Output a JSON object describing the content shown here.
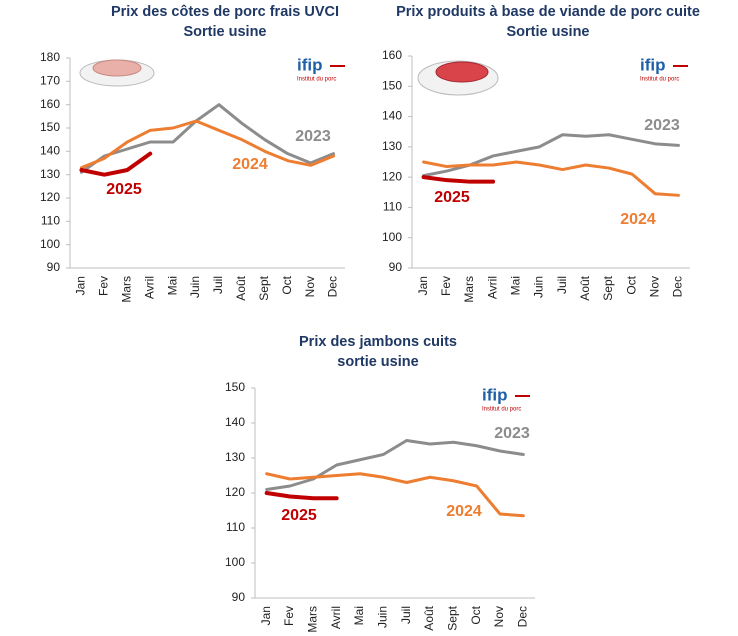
{
  "chart_data": [
    {
      "type": "line",
      "title": "Prix des côtes de porc frais UVCI",
      "subtitle": "Sortie usine",
      "logo": {
        "name": "ifip",
        "tagline": "Institut du porc"
      },
      "categories": [
        "Jan",
        "Fev",
        "Mars",
        "Avril",
        "Mai",
        "Juin",
        "Juil",
        "Août",
        "Sept",
        "Oct",
        "Nov",
        "Dec"
      ],
      "series": [
        {
          "name": "2023",
          "color": "#8c8c8c",
          "values": [
            131,
            138,
            141,
            144,
            144,
            153,
            160,
            152,
            145,
            139,
            135,
            139
          ]
        },
        {
          "name": "2024",
          "color": "#ed7d31",
          "values": [
            133,
            137,
            144,
            149,
            150,
            153,
            149,
            145,
            140,
            136,
            134,
            138
          ]
        },
        {
          "name": "2025",
          "color": "#c00000",
          "values": [
            132,
            130,
            132,
            139,
            null,
            null,
            null,
            null,
            null,
            null,
            null,
            null
          ]
        }
      ],
      "ylim": [
        90,
        180
      ],
      "yticks": [
        90,
        100,
        110,
        120,
        130,
        140,
        150,
        160,
        170,
        180
      ],
      "grid": false
    },
    {
      "type": "line",
      "title": "Prix produits à base de viande de porc cuite",
      "subtitle": "Sortie usine",
      "logo": {
        "name": "ifip",
        "tagline": "Institut du porc"
      },
      "categories": [
        "Jan",
        "Fev",
        "Mars",
        "Avril",
        "Mai",
        "Juin",
        "Juil",
        "Août",
        "Sept",
        "Oct",
        "Nov",
        "Dec"
      ],
      "series": [
        {
          "name": "2023",
          "color": "#8c8c8c",
          "values": [
            120.5,
            122,
            124,
            127,
            128.5,
            130,
            134,
            133.5,
            134,
            132.5,
            131,
            130.5
          ]
        },
        {
          "name": "2024",
          "color": "#ed7d31",
          "values": [
            125,
            123.5,
            124,
            124,
            125,
            124,
            122.5,
            124,
            123,
            121,
            114.5,
            114
          ]
        },
        {
          "name": "2025",
          "color": "#c00000",
          "values": [
            120,
            119,
            118.5,
            118.5,
            null,
            null,
            null,
            null,
            null,
            null,
            null,
            null
          ]
        }
      ],
      "ylim": [
        90,
        160
      ],
      "yticks": [
        90,
        100,
        110,
        120,
        130,
        140,
        150,
        160
      ],
      "grid": false
    },
    {
      "type": "line",
      "title": "Prix des jambons cuits",
      "subtitle": "sortie usine",
      "logo": {
        "name": "ifip",
        "tagline": "Institut du porc"
      },
      "categories": [
        "Jan",
        "Fev",
        "Mars",
        "Avril",
        "Mai",
        "Juin",
        "Juil",
        "Août",
        "Sept",
        "Oct",
        "Nov",
        "Dec"
      ],
      "series": [
        {
          "name": "2023",
          "color": "#8c8c8c",
          "values": [
            121,
            122,
            124,
            128,
            129.5,
            131,
            135,
            134,
            134.5,
            133.5,
            132,
            131
          ]
        },
        {
          "name": "2024",
          "color": "#ed7d31",
          "values": [
            125.5,
            124,
            124.5,
            125,
            125.5,
            124.5,
            123,
            124.5,
            123.5,
            122,
            114,
            113.5
          ]
        },
        {
          "name": "2025",
          "color": "#c00000",
          "values": [
            120,
            119,
            118.5,
            118.5,
            null,
            null,
            null,
            null,
            null,
            null,
            null,
            null
          ]
        }
      ],
      "ylim": [
        90,
        150
      ],
      "yticks": [
        90,
        100,
        110,
        120,
        130,
        140,
        150
      ],
      "grid": false
    }
  ]
}
